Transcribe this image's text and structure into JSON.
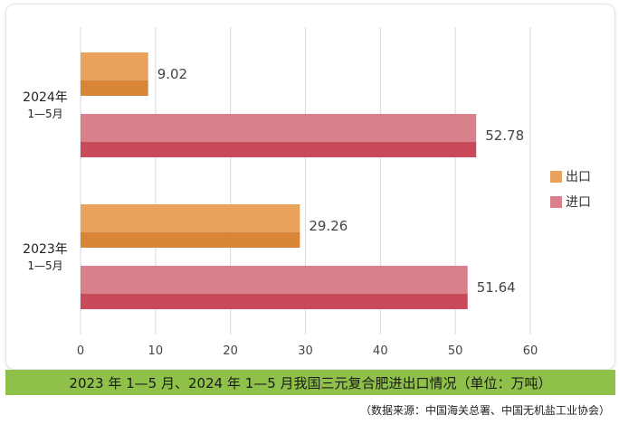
{
  "chart_data": {
    "type": "bar",
    "orientation": "horizontal",
    "categories": [
      {
        "line1": "2024年",
        "line2": "1—5月"
      },
      {
        "line1": "2023年",
        "line2": "1—5月"
      }
    ],
    "series": [
      {
        "name": "出口",
        "values": [
          9.02,
          29.26
        ],
        "labels": [
          "9.02",
          "29.26"
        ],
        "color": "#e8a25c",
        "color_dark": "#d88537"
      },
      {
        "name": "进口",
        "values": [
          52.78,
          51.64
        ],
        "labels": [
          "52.78",
          "51.64"
        ],
        "color": "#d9808d",
        "color_dark": "#c94a5b"
      }
    ],
    "xlim": [
      0,
      60
    ],
    "xticks": [
      "0",
      "10",
      "20",
      "30",
      "40",
      "50",
      "60"
    ],
    "grid": true,
    "legend_position": "right"
  },
  "title": "2023 年 1—5 月、2024 年 1—5 月我国三元复合肥进出口情况（单位：万吨）",
  "source": "（数据来源：中国海关总署、中国无机盐工业协会）"
}
